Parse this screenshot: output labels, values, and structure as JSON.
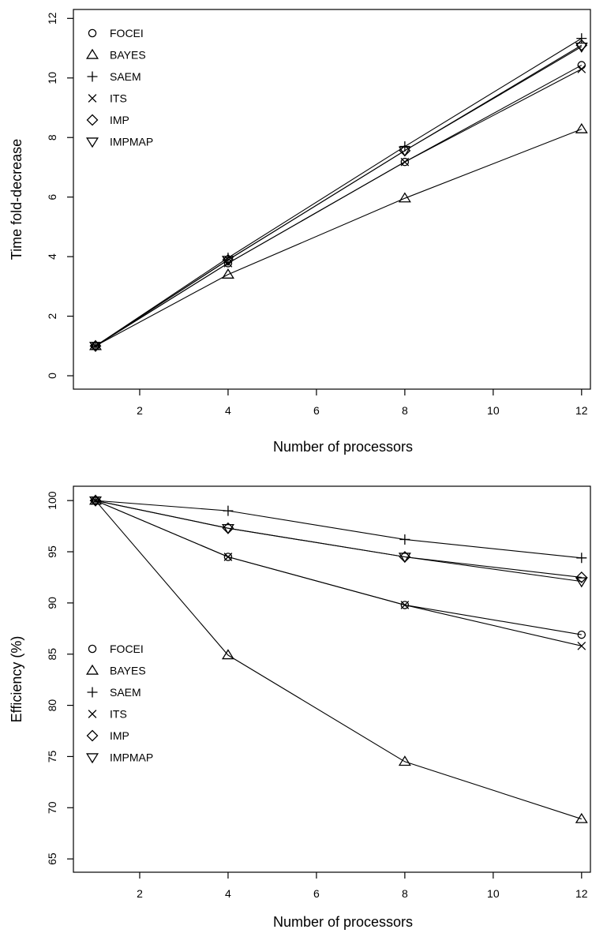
{
  "chart_data": [
    {
      "type": "line",
      "xlabel": "Number of processors",
      "ylabel": "Time fold-decrease",
      "x": [
        1,
        4,
        8,
        12
      ],
      "xticks": [
        2,
        4,
        6,
        8,
        10,
        12
      ],
      "yticks": [
        0,
        2,
        4,
        6,
        8,
        10,
        12
      ],
      "xlim": [
        0.5,
        12.2
      ],
      "ylim": [
        -0.45,
        12.3
      ],
      "legend_position": "top-left",
      "series": [
        {
          "name": "FOCEI",
          "marker": "circle",
          "values": [
            1,
            3.78,
            7.18,
            10.43
          ]
        },
        {
          "name": "BAYES",
          "marker": "triangle-up",
          "values": [
            1,
            3.4,
            5.96,
            8.28
          ]
        },
        {
          "name": "SAEM",
          "marker": "plus",
          "values": [
            1,
            3.96,
            7.7,
            11.33
          ]
        },
        {
          "name": "ITS",
          "marker": "cross",
          "values": [
            1,
            3.78,
            7.18,
            10.3
          ]
        },
        {
          "name": "IMP",
          "marker": "diamond",
          "values": [
            1,
            3.89,
            7.56,
            11.1
          ]
        },
        {
          "name": "IMPMAP",
          "marker": "triangle-down",
          "values": [
            1,
            3.89,
            7.56,
            11.05
          ]
        }
      ]
    },
    {
      "type": "line",
      "xlabel": "Number of processors",
      "ylabel": "Efficiency (%)",
      "x": [
        1,
        4,
        8,
        12
      ],
      "xticks": [
        2,
        4,
        6,
        8,
        10,
        12
      ],
      "yticks": [
        65,
        70,
        75,
        80,
        85,
        90,
        95,
        100
      ],
      "xlim": [
        0.5,
        12.2
      ],
      "ylim": [
        63.7,
        101.4
      ],
      "legend_position": "bottom-left",
      "series": [
        {
          "name": "FOCEI",
          "marker": "circle",
          "values": [
            100,
            94.5,
            89.8,
            86.9
          ]
        },
        {
          "name": "BAYES",
          "marker": "triangle-up",
          "values": [
            100,
            84.9,
            74.5,
            68.9
          ]
        },
        {
          "name": "SAEM",
          "marker": "plus",
          "values": [
            100,
            99.0,
            96.2,
            94.4
          ]
        },
        {
          "name": "ITS",
          "marker": "cross",
          "values": [
            100,
            94.5,
            89.8,
            85.8
          ]
        },
        {
          "name": "IMP",
          "marker": "diamond",
          "values": [
            100,
            97.3,
            94.5,
            92.5
          ]
        },
        {
          "name": "IMPMAP",
          "marker": "triangle-down",
          "values": [
            100,
            97.3,
            94.5,
            92.1
          ]
        }
      ]
    }
  ]
}
